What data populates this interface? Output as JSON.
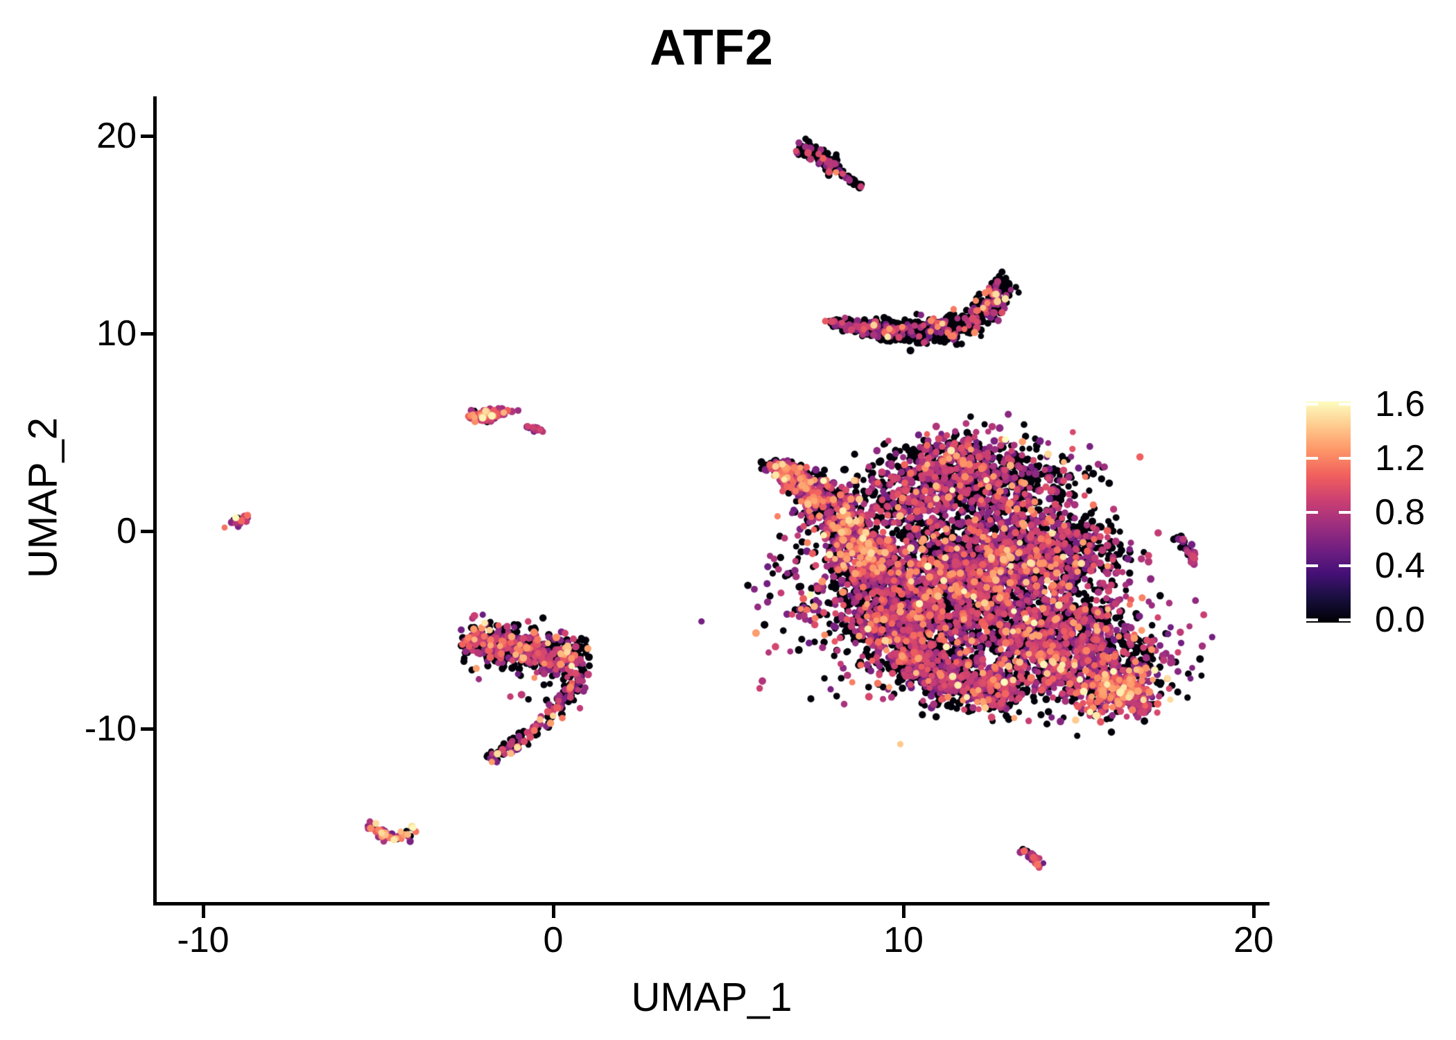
{
  "title": "ATF2",
  "colors": {
    "background": "#ffffff",
    "text": "#000000",
    "axis": "#000000",
    "colorbar_tick_mark": "#ffffff"
  },
  "chart_data": {
    "type": "scatter",
    "title": "ATF2",
    "xlabel": "UMAP_1",
    "ylabel": "UMAP_2",
    "x_ticks": [
      -10,
      0,
      10,
      20
    ],
    "y_ticks": [
      20,
      10,
      0,
      -10
    ],
    "xlim": [
      -11.4,
      20.4
    ],
    "ylim": [
      -18.8,
      22.0
    ],
    "grid": false,
    "legend": {
      "position": "right",
      "colormap": "magma",
      "tick_labels": [
        "1.6",
        "1.2",
        "0.8",
        "0.4",
        "0.0"
      ],
      "tick_values": [
        1.6,
        1.2,
        0.8,
        0.4,
        0.0
      ],
      "domain": [
        -0.02,
        1.62
      ]
    },
    "colormap_stops": [
      "#000004",
      "#180f3e",
      "#451077",
      "#721f81",
      "#9f2f7f",
      "#cd4071",
      "#f1605d",
      "#fd9567",
      "#feca8d",
      "#fcfdbf"
    ],
    "point_style": {
      "radius_px": [
        4.3,
        5.6
      ]
    },
    "expr_levels": {
      "zero": 0,
      "mid": [
        0.5,
        0.97
      ],
      "high": [
        1.0,
        1.32
      ],
      "vhigh": [
        1.35,
        1.62
      ]
    },
    "seed": 1337,
    "clusters": [
      {
        "name": "comet-top",
        "expr": [
          0.8,
          0.16,
          0.04,
          0.0
        ],
        "shapes": [
          {
            "type": "path",
            "pts": [
              [
                7.0,
                19.45
              ],
              [
                7.65,
                18.85
              ],
              [
                8.1,
                18.35
              ]
            ],
            "w": 0.3,
            "n": 110
          },
          {
            "type": "path",
            "pts": [
              [
                8.1,
                18.35
              ],
              [
                8.8,
                17.35
              ]
            ],
            "w": 0.1,
            "n": 30
          }
        ]
      },
      {
        "name": "crescent",
        "expr": [
          0.7,
          0.25,
          0.04,
          0.01
        ],
        "shapes": [
          {
            "type": "path",
            "pts": [
              [
                7.95,
                10.55
              ],
              [
                9.2,
                10.22
              ],
              [
                10.6,
                10.08
              ],
              [
                11.6,
                10.35
              ],
              [
                12.35,
                11.05
              ],
              [
                12.95,
                12.55
              ]
            ],
            "w": 0.5,
            "n": 680,
            "taper": "start"
          }
        ]
      },
      {
        "name": "mid-left-blob",
        "expr": [
          0.2,
          0.55,
          0.18,
          0.07
        ],
        "shapes": [
          {
            "type": "blob",
            "cx": -1.9,
            "cy": 5.85,
            "sx": 0.3,
            "sy": 0.17,
            "rot": -12,
            "n": 85
          }
        ]
      },
      {
        "name": "mid-left-tiny",
        "expr": [
          0.1,
          0.82,
          0.08,
          0.0
        ],
        "shapes": [
          {
            "type": "path",
            "pts": [
              [
                -0.75,
                5.35
              ],
              [
                -0.2,
                5.0
              ]
            ],
            "w": 0.09,
            "n": 14
          }
        ]
      },
      {
        "name": "left-dot",
        "expr": [
          0.3,
          0.45,
          0.2,
          0.05
        ],
        "shapes": [
          {
            "type": "blob",
            "cx": -8.95,
            "cy": 0.5,
            "sx": 0.18,
            "sy": 0.12,
            "rot": -25,
            "n": 16
          }
        ]
      },
      {
        "name": "seahorse-band",
        "expr": [
          0.48,
          0.4,
          0.09,
          0.03
        ],
        "shapes": [
          {
            "type": "path",
            "pts": [
              [
                -2.5,
                -5.55
              ],
              [
                -1.4,
                -5.85
              ],
              [
                -0.3,
                -6.05
              ],
              [
                0.9,
                -6.55
              ]
            ],
            "w": 0.8,
            "n": 520
          }
        ]
      },
      {
        "name": "seahorse-tail",
        "expr": [
          0.58,
          0.33,
          0.07,
          0.02
        ],
        "shapes": [
          {
            "type": "path",
            "pts": [
              [
                0.85,
                -7.0
              ],
              [
                0.5,
                -8.2
              ],
              [
                -0.2,
                -9.6
              ],
              [
                -1.1,
                -10.9
              ],
              [
                -1.85,
                -11.5
              ]
            ],
            "w": 0.3,
            "n": 150
          },
          {
            "type": "blob",
            "cx": 0.1,
            "cy": -7.6,
            "sx": 0.55,
            "sy": 0.5,
            "rot": 0,
            "n": 25
          }
        ]
      },
      {
        "name": "bottom-left-v",
        "expr": [
          0.25,
          0.42,
          0.22,
          0.11
        ],
        "shapes": [
          {
            "type": "path",
            "pts": [
              [
                -5.25,
                -14.85
              ],
              [
                -4.55,
                -15.65
              ],
              [
                -3.95,
                -15.05
              ]
            ],
            "w": 0.24,
            "n": 55
          }
        ]
      },
      {
        "name": "main-top-lobe",
        "expr": [
          0.5,
          0.43,
          0.06,
          0.01
        ],
        "shapes": [
          {
            "type": "blob",
            "cx": 11.4,
            "cy": 2.6,
            "sx": 1.45,
            "sy": 1.0,
            "rot": -8,
            "n": 850
          },
          {
            "type": "blob",
            "cx": 11.4,
            "cy": 4.1,
            "sx": 0.4,
            "sy": 0.45,
            "rot": 0,
            "n": 60
          }
        ]
      },
      {
        "name": "main-left-arm",
        "expr": [
          0.38,
          0.41,
          0.17,
          0.04
        ],
        "shapes": [
          {
            "type": "path",
            "pts": [
              [
                6.4,
                3.2
              ],
              [
                7.5,
                1.9
              ],
              [
                8.4,
                0.2
              ],
              [
                9.2,
                -2.2
              ]
            ],
            "w": 1.05,
            "n": 780,
            "taper": "start"
          },
          {
            "type": "blob",
            "cx": 6.45,
            "cy": 3.2,
            "sx": 0.2,
            "sy": 0.2,
            "rot": 0,
            "n": 25
          }
        ]
      },
      {
        "name": "main-ne-sparse",
        "expr": [
          0.75,
          0.22,
          0.03,
          0.0
        ],
        "shapes": [
          {
            "type": "blob",
            "cx": 13.7,
            "cy": 2.3,
            "sx": 0.85,
            "sy": 0.85,
            "rot": 0,
            "n": 150
          }
        ]
      },
      {
        "name": "main-central",
        "expr": [
          0.47,
          0.44,
          0.08,
          0.01
        ],
        "shapes": [
          {
            "type": "blob",
            "cx": 11.4,
            "cy": -3.0,
            "sx": 2.0,
            "sy": 2.1,
            "rot": 0,
            "n": 2500
          },
          {
            "type": "blob",
            "cx": 13.0,
            "cy": -1.0,
            "sx": 1.1,
            "sy": 1.2,
            "rot": 0,
            "n": 420
          },
          {
            "type": "blob",
            "cx": 9.7,
            "cy": -4.5,
            "sx": 0.9,
            "sy": 1.3,
            "rot": 0,
            "n": 380
          }
        ]
      },
      {
        "name": "main-right-protrusion",
        "expr": [
          0.55,
          0.39,
          0.05,
          0.01
        ],
        "shapes": [
          {
            "type": "blob",
            "cx": 14.7,
            "cy": -1.0,
            "sx": 0.75,
            "sy": 1.0,
            "rot": 0,
            "n": 280
          }
        ]
      },
      {
        "name": "main-bottom-band",
        "expr": [
          0.55,
          0.38,
          0.06,
          0.01
        ],
        "shapes": [
          {
            "type": "path",
            "pts": [
              [
                9.8,
                -6.2
              ],
              [
                11.2,
                -7.6
              ],
              [
                13.2,
                -8.2
              ]
            ],
            "w": 0.85,
            "n": 620
          }
        ]
      },
      {
        "name": "main-br-lobe",
        "expr": [
          0.45,
          0.45,
          0.08,
          0.02
        ],
        "shapes": [
          {
            "type": "blob",
            "cx": 15.4,
            "cy": -7.0,
            "sx": 1.15,
            "sy": 1.15,
            "rot": 0,
            "n": 650
          },
          {
            "type": "path",
            "pts": [
              [
                16.3,
                -8.0
              ],
              [
                17.0,
                -9.0
              ]
            ],
            "w": 0.38,
            "n": 90
          },
          {
            "type": "blob",
            "cx": 15.5,
            "cy": -4.2,
            "sx": 0.6,
            "sy": 0.8,
            "rot": 0,
            "n": 90
          },
          {
            "type": "blob",
            "cx": 14.2,
            "cy": -5.5,
            "sx": 0.8,
            "sy": 1.0,
            "rot": 0,
            "n": 280
          }
        ]
      },
      {
        "name": "main-br-hotspot",
        "expr": [
          0.12,
          0.34,
          0.44,
          0.1
        ],
        "shapes": [
          {
            "type": "blob",
            "cx": 16.1,
            "cy": -8.1,
            "sx": 0.55,
            "sy": 0.5,
            "rot": -20,
            "n": 160
          }
        ]
      },
      {
        "name": "right-small",
        "expr": [
          0.35,
          0.58,
          0.06,
          0.01
        ],
        "shapes": [
          {
            "type": "path",
            "pts": [
              [
                17.9,
                -0.35
              ],
              [
                18.35,
                -1.6
              ]
            ],
            "w": 0.17,
            "n": 40
          }
        ]
      },
      {
        "name": "bottom-small",
        "expr": [
          0.22,
          0.62,
          0.13,
          0.03
        ],
        "shapes": [
          {
            "type": "path",
            "pts": [
              [
                13.35,
                -16.1
              ],
              [
                14.0,
                -16.9
              ]
            ],
            "w": 0.13,
            "n": 26
          }
        ]
      }
    ]
  }
}
